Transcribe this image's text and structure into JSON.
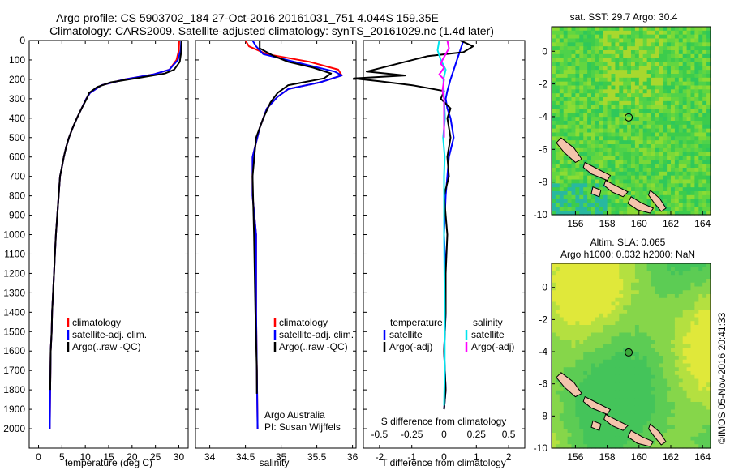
{
  "header": {
    "line1": "Argo profile: CS 5903702_184 27-Oct-2016 20161031_751 4.044S 159.35E",
    "line2": "Climatology: CARS2009. Satellite-adjusted climatology: synTS_20161029.nc (1.4d later)"
  },
  "colors": {
    "climatology": "#ff0000",
    "satellite": "#0000ff",
    "argo": "#000000",
    "sal_satellite": "#00e5ee",
    "sal_argo": "#ff00ff"
  },
  "chart_data": [
    {
      "type": "line",
      "panel": "temperature",
      "xlabel": "temperature (deg C)",
      "ylabel": "",
      "xlim": [
        -2,
        32
      ],
      "ylim": [
        2100,
        0
      ],
      "x_ticks": [
        0,
        5,
        10,
        15,
        20,
        25,
        30
      ],
      "y_ticks": [
        0,
        100,
        200,
        300,
        400,
        500,
        600,
        700,
        800,
        900,
        1000,
        1100,
        1200,
        1300,
        1400,
        1500,
        1600,
        1700,
        1800,
        1900,
        2000
      ],
      "legend": [
        "climatology",
        "satellite-adj. clim.",
        "Argo(..raw -QC)"
      ],
      "series": [
        {
          "name": "climatology",
          "color": "#ff0000",
          "x": [
            30.1,
            30.0,
            29.5,
            28.0,
            24.5,
            18.5,
            13.5,
            11.0,
            10.2,
            9.2,
            8.2,
            7.3,
            6.5,
            5.9,
            5.4,
            5.0,
            4.6,
            4.3,
            4.0,
            3.7,
            3.5,
            3.3,
            3.1,
            2.9,
            2.8,
            2.6,
            2.5,
            2.4
          ],
          "y": [
            0,
            50,
            100,
            150,
            175,
            200,
            230,
            270,
            300,
            350,
            400,
            450,
            500,
            550,
            600,
            650,
            700,
            800,
            900,
            1000,
            1100,
            1200,
            1300,
            1400,
            1500,
            1600,
            1800,
            2000
          ]
        },
        {
          "name": "satellite-adj. clim.",
          "color": "#0000ff",
          "x": [
            30.5,
            30.4,
            29.8,
            28.0,
            24.5,
            18.5,
            13.5,
            11.0,
            10.2,
            9.2,
            8.2,
            7.3,
            6.5,
            5.9,
            5.4,
            5.0,
            4.6,
            4.3,
            4.0,
            3.7,
            3.5,
            3.3,
            3.1,
            2.9,
            2.8,
            2.6,
            2.5,
            2.4
          ],
          "y": [
            0,
            50,
            100,
            150,
            175,
            200,
            230,
            270,
            300,
            350,
            400,
            450,
            500,
            550,
            600,
            650,
            700,
            800,
            900,
            1000,
            1100,
            1200,
            1300,
            1400,
            1500,
            1600,
            1800,
            2000
          ]
        },
        {
          "name": "Argo(..raw -QC)",
          "color": "#000000",
          "x": [
            30.6,
            30.5,
            30.2,
            29.0,
            27.0,
            22.0,
            15.5,
            12.5,
            10.8,
            10.3,
            9.2,
            8.2,
            7.3,
            6.5,
            5.9,
            5.4,
            5.0,
            4.6,
            4.3,
            4.0,
            3.7,
            3.5,
            3.3,
            3.1,
            2.9,
            2.8,
            2.6,
            2.5
          ],
          "y": [
            0,
            60,
            110,
            150,
            170,
            190,
            215,
            240,
            270,
            300,
            350,
            400,
            450,
            500,
            550,
            600,
            650,
            700,
            800,
            900,
            1000,
            1100,
            1200,
            1300,
            1400,
            1500,
            1600,
            1800
          ]
        }
      ]
    },
    {
      "type": "line",
      "panel": "salinity",
      "xlabel": "salinity",
      "ylabel": "",
      "xlim": [
        33.8,
        36.05
      ],
      "ylim": [
        2100,
        0
      ],
      "x_ticks": [
        34,
        34.5,
        35,
        35.5,
        36
      ],
      "legend": [
        "climatology",
        "satellite-adj. clim.",
        "Argo(..raw -QC)"
      ],
      "annotations": [
        "Argo Australia",
        "PI: Susan Wijffels"
      ],
      "series": [
        {
          "name": "climatology",
          "color": "#ff0000",
          "x": [
            34.5,
            34.55,
            34.8,
            35.4,
            35.8,
            35.85,
            35.55,
            35.1,
            34.95,
            34.8,
            34.7,
            34.6,
            34.6,
            34.65,
            34.65,
            34.66,
            34.67
          ],
          "y": [
            0,
            30,
            70,
            110,
            150,
            180,
            215,
            250,
            290,
            350,
            450,
            600,
            800,
            1000,
            1400,
            1700,
            2000
          ]
        },
        {
          "name": "satellite-adj. clim.",
          "color": "#0000ff",
          "x": [
            34.6,
            34.65,
            34.75,
            35.3,
            35.75,
            35.85,
            35.55,
            35.1,
            34.95,
            34.8,
            34.7,
            34.6,
            34.6,
            34.65,
            34.65,
            34.66,
            34.67
          ],
          "y": [
            0,
            30,
            70,
            120,
            160,
            180,
            215,
            250,
            290,
            350,
            450,
            600,
            800,
            1000,
            1400,
            1700,
            2000
          ]
        },
        {
          "name": "Argo(..raw -QC)",
          "color": "#000000",
          "x": [
            34.7,
            34.7,
            34.9,
            35.1,
            35.45,
            35.7,
            35.6,
            35.1,
            34.95,
            34.85,
            34.75,
            34.65,
            34.6,
            34.62,
            34.64,
            34.66,
            34.66
          ],
          "y": [
            0,
            40,
            80,
            110,
            140,
            170,
            195,
            230,
            270,
            320,
            400,
            500,
            700,
            1000,
            1400,
            1700,
            1820
          ]
        }
      ]
    },
    {
      "type": "line",
      "panel": "difference",
      "xlabel": "T difference from climatology",
      "xlabel_top": "S difference from climatology",
      "xlim": [
        -2.5,
        2.5
      ],
      "ylim": [
        2100,
        0
      ],
      "x_ticks": [
        -2,
        -1,
        0,
        1,
        2
      ],
      "x2_ticks": [
        "-0.5",
        "-0.25",
        "0",
        "0.25",
        "0.5"
      ],
      "legend": {
        "temperature": [
          "satellite",
          "Argo(-adj)"
        ],
        "salinity": [
          "satellite",
          "Argo(-adj)"
        ]
      },
      "series": [
        {
          "name": "temperature satellite",
          "color": "#0000ff",
          "x": [
            0.6,
            0.4,
            0.2,
            0.1,
            0.05,
            0.1,
            0.2,
            0.3,
            0.15,
            0.1,
            0.05,
            0.0,
            0.05,
            0.05,
            0.0,
            0.05,
            0.0
          ],
          "y": [
            0,
            100,
            200,
            260,
            300,
            350,
            400,
            500,
            600,
            700,
            800,
            1000,
            1200,
            1400,
            1600,
            1800,
            1900
          ]
        },
        {
          "name": "temperature Argo(-adj)",
          "color": "#000000",
          "x": [
            0.5,
            0.9,
            0.6,
            -0.5,
            -2.4,
            -1.2,
            -2.8,
            -2.0,
            -1.0,
            0.0,
            -0.1,
            0.2,
            0.1,
            0.2,
            0.1,
            0.15,
            0.0,
            0.1,
            0.05,
            0.05,
            0.0,
            0.05,
            0.0
          ],
          "y": [
            0,
            30,
            60,
            80,
            160,
            180,
            195,
            210,
            230,
            260,
            300,
            350,
            400,
            500,
            600,
            700,
            800,
            1000,
            1200,
            1400,
            1600,
            1800,
            1900
          ]
        },
        {
          "name": "salinity satellite",
          "color": "#00e5ee",
          "x": [
            -0.15,
            -0.2,
            -0.1,
            0.05,
            -0.02,
            0.0,
            0.03,
            -0.03,
            0.02,
            0.0,
            0.0,
            0.0,
            0.02,
            0.02,
            0.0
          ],
          "y": [
            0,
            50,
            100,
            150,
            200,
            300,
            400,
            500,
            600,
            700,
            800,
            1000,
            1400,
            1700,
            1880
          ]
        },
        {
          "name": "salinity Argo(-adj)",
          "color": "#ff00ff",
          "x": [
            0.1,
            0.15,
            -0.05,
            -0.1,
            0.0,
            -0.15,
            0.0,
            -0.05,
            0.0,
            0.0,
            0.0
          ],
          "y": [
            0,
            40,
            100,
            120,
            140,
            175,
            200,
            260,
            300,
            400,
            500
          ]
        }
      ]
    },
    {
      "type": "heatmap",
      "panel": "sst_map",
      "title": "sat. SST: 29.7 Argo: 30.4",
      "xlim": [
        154.5,
        164.5
      ],
      "ylim": [
        -10,
        1.5
      ],
      "x_ticks": [
        156,
        158,
        160,
        162,
        164
      ],
      "y_ticks": [
        0,
        -2,
        -4,
        -6,
        -8,
        -10
      ],
      "argo_marker": [
        159.35,
        -4.044
      ]
    },
    {
      "type": "heatmap",
      "panel": "sla_map",
      "title_line1": "Altim. SLA: 0.065",
      "title_line2": "Argo h1000: 0.032 h2000: NaN",
      "xlim": [
        154.5,
        164.5
      ],
      "ylim": [
        -10,
        1.5
      ],
      "x_ticks": [
        156,
        158,
        160,
        162,
        164
      ],
      "y_ticks": [
        0,
        -2,
        -4,
        -6,
        -8,
        -10
      ],
      "argo_marker": [
        159.35,
        -4.044
      ]
    }
  ],
  "footer": {
    "credit": "©IMOS 05-Nov-2016 20:41:33"
  }
}
